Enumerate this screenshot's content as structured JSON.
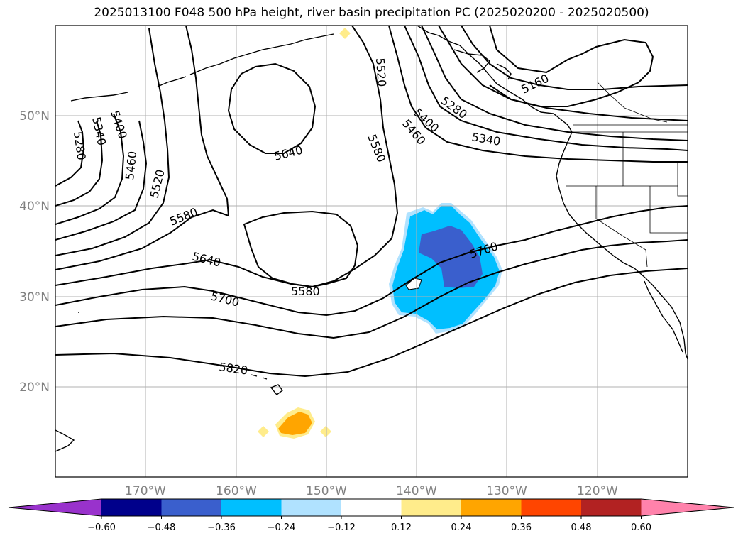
{
  "title": "2025013100 F048 500 hPa height, river basin precipitation PC (2025020200 - 2025020500)",
  "map": {
    "lat_labels": [
      "50°N",
      "40°N",
      "30°N",
      "20°N"
    ],
    "lon_labels": [
      "170°W",
      "160°W",
      "150°W",
      "140°W",
      "130°W",
      "120°W"
    ],
    "contour_labels": [
      "5280",
      "5340",
      "5400",
      "5460",
      "5520",
      "5580",
      "5640",
      "5700",
      "5820",
      "5520",
      "5580",
      "5640",
      "5580",
      "5460",
      "5400",
      "5280",
      "5340",
      "5160",
      "5760"
    ]
  },
  "colorbar": {
    "ticks": [
      "−0.60",
      "−0.48",
      "−0.36",
      "−0.24",
      "−0.12",
      "0.12",
      "0.24",
      "0.36",
      "0.48",
      "0.60"
    ],
    "colors": [
      "#9932cc",
      "#00008b",
      "#3a5fcd",
      "#00bfff",
      "#b0e2ff",
      "#ffffff",
      "#ffec8b",
      "#ffa500",
      "#ff4500",
      "#b22222",
      "#ff82ab"
    ]
  }
}
